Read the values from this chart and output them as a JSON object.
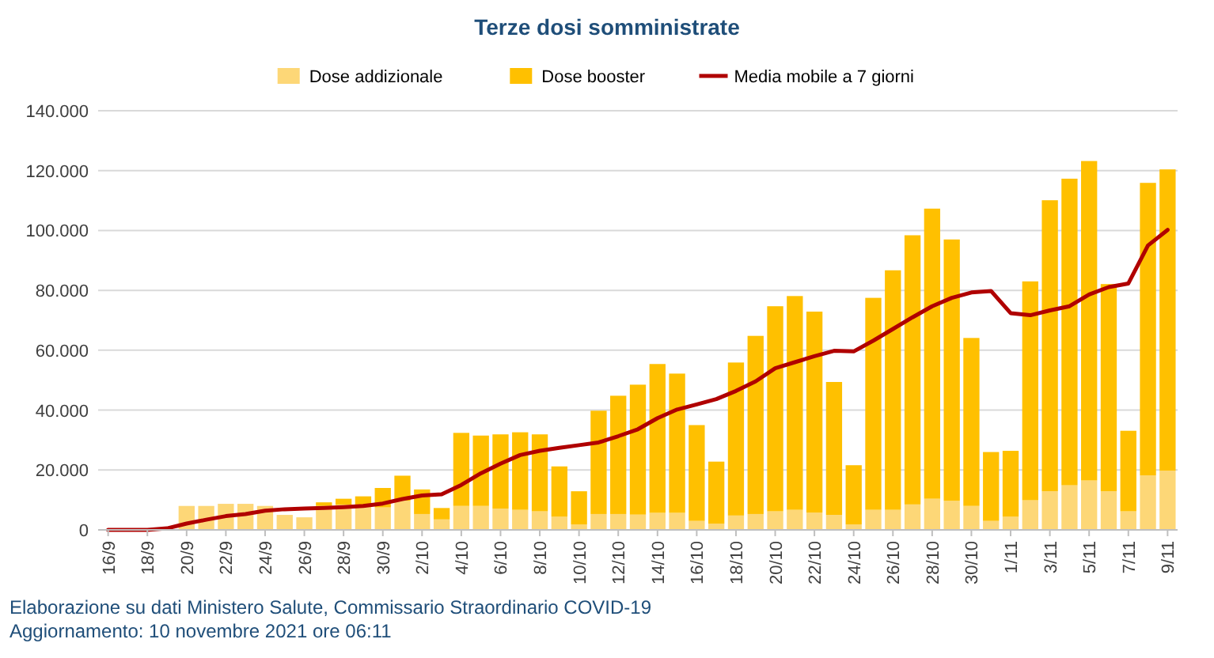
{
  "chart_data": {
    "type": "bar",
    "title": "Terze dosi somministrate",
    "stacked": true,
    "grid": "y",
    "legend": "top",
    "categories": [
      "16/9",
      null,
      "18/9",
      null,
      "20/9",
      null,
      "22/9",
      null,
      "24/9",
      null,
      "26/9",
      null,
      "28/9",
      null,
      "30/9",
      null,
      "2/10",
      null,
      "4/10",
      null,
      "6/10",
      null,
      "8/10",
      null,
      "10/10",
      null,
      "12/10",
      null,
      "14/10",
      null,
      "16/10",
      null,
      "18/10",
      null,
      "20/10",
      null,
      "22/10",
      null,
      "24/10",
      null,
      "26/10",
      null,
      "28/10",
      null,
      "30/10",
      null,
      "1/11",
      null,
      "3/11",
      null,
      "5/11",
      null,
      "7/11",
      null,
      "9/11"
    ],
    "ylim": [
      0,
      140000
    ],
    "yticks": [
      {
        "value": 0,
        "label": "0"
      },
      {
        "value": 20000,
        "label": "20.000"
      },
      {
        "value": 40000,
        "label": "40.000"
      },
      {
        "value": 60000,
        "label": "60.000"
      },
      {
        "value": 80000,
        "label": "80.000"
      },
      {
        "value": 100000,
        "label": "100.000"
      },
      {
        "value": 120000,
        "label": "120.000"
      },
      {
        "value": 140000,
        "label": "140.000"
      }
    ],
    "series": [
      {
        "name": "Dose addizionale",
        "color": "#fdd777",
        "values": [
          0,
          0,
          0,
          0,
          8000,
          8000,
          8700,
          8700,
          8000,
          5000,
          4200,
          8000,
          8400,
          8400,
          7500,
          9700,
          5300,
          3500,
          8000,
          8000,
          7100,
          6700,
          6200,
          4400,
          1800,
          5300,
          5300,
          5100,
          5700,
          5700,
          3000,
          2100,
          4800,
          5300,
          6200,
          6700,
          5800,
          5000,
          1800,
          6700,
          6700,
          8500,
          10400,
          9700,
          8000,
          3000,
          4400,
          9900,
          12900,
          14900,
          16500,
          12900,
          6200,
          18200,
          19800
        ]
      },
      {
        "name": "Dose booster",
        "color": "#ffc000",
        "values": [
          0,
          0,
          0,
          0,
          0,
          0,
          0,
          0,
          0,
          0,
          0,
          1200,
          2000,
          2800,
          6500,
          8400,
          8200,
          3800,
          24400,
          23500,
          24800,
          25900,
          25700,
          16800,
          11100,
          34500,
          39500,
          43400,
          49700,
          46500,
          32000,
          20700,
          51100,
          59500,
          68500,
          71400,
          67100,
          44400,
          19800,
          70800,
          80000,
          89900,
          96900,
          87300,
          56100,
          23000,
          22000,
          73100,
          97200,
          102400,
          106700,
          69200,
          26900,
          97700,
          100600
        ]
      },
      {
        "name": "Media mobile a 7 giorni",
        "type": "line",
        "color": "#b00000",
        "values": [
          0,
          0,
          0,
          500,
          2100,
          3400,
          4600,
          5300,
          6400,
          6900,
          7100,
          7300,
          7600,
          8000,
          8800,
          10300,
          11500,
          11900,
          15000,
          18900,
          22100,
          25000,
          26400,
          27400,
          28300,
          29200,
          31300,
          33600,
          37300,
          40200,
          41900,
          43700,
          46400,
          49600,
          54000,
          56000,
          58000,
          59800,
          59600,
          63200,
          67100,
          71000,
          74700,
          77500,
          79300,
          79800,
          72400,
          71700,
          73300,
          74700,
          78600,
          81100,
          82300,
          95000,
          100200
        ]
      }
    ],
    "annotations": [
      "Elaborazione su dati Ministero Salute, Commissario Straordinario COVID-19",
      "Aggiornamento: 10 novembre 2021 ore 06:11"
    ]
  }
}
